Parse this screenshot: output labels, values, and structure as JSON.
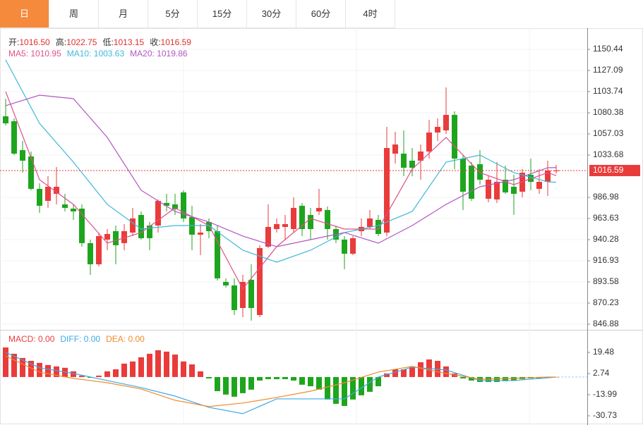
{
  "tabs": [
    "日",
    "周",
    "月",
    "5分",
    "15分",
    "30分",
    "60分",
    "4时"
  ],
  "active_tab": 0,
  "chart_data": [
    {
      "type": "candlestick",
      "ohlc_legend": [
        {
          "label": "开:",
          "value": "1016.50"
        },
        {
          "label": "高:",
          "value": "1022.75"
        },
        {
          "label": "低:",
          "value": "1013.15"
        },
        {
          "label": "收:",
          "value": "1016.59"
        }
      ],
      "open": [
        1076.5,
        1071.05,
        1039.14,
        1032.14,
        996.34,
        983.1,
        990.89,
        979.21,
        974.54,
        974.54,
        936.41,
        913.06,
        940.3,
        949.64,
        936.41,
        948.08,
        967.54,
        955.86,
        955.86,
        980.77,
        979.21,
        992.44,
        965.2,
        945.75,
        959.76,
        949.64,
        893.6,
        889.71,
        864.8,
        895.93,
        857.02,
        932.51,
        951.97,
        954.31,
        951.97,
        977.66,
        967.54,
        971.43,
        972.99,
        951.97,
        940.3,
        924.73,
        949.64,
        954.31,
        962.09,
        948.08,
        1035.25,
        1035.25,
        1027.47,
        1027.47,
        1037.59,
        1058.6,
        1060.93,
        1078.06,
        1029.8,
        1022.02,
        1023.58,
        985.44,
        984.66,
        1006.45,
        998.67,
        993.22,
        1011.9,
        996.34,
        1004.12,
        1016.5
      ],
      "high": [
        1095.96,
        1074.17,
        1049.26,
        1037.59,
        1002.56,
        1010.34,
        1020.46,
        990.89,
        979.21,
        979.21,
        940.3,
        948.08,
        951.97,
        955.86,
        957.42,
        975.32,
        971.43,
        959.76,
        984.66,
        990.89,
        990.89,
        994.78,
        977.66,
        957.42,
        963.65,
        955.86,
        897.49,
        897.49,
        901.38,
        913.06,
        934.07,
        979.21,
        963.65,
        967.54,
        986.99,
        980.77,
        975.32,
        996.34,
        976.88,
        955.86,
        944.19,
        944.19,
        963.65,
        972.99,
        967.54,
        1064.83,
        1059.38,
        1060.93,
        1041.48,
        1045.37,
        1072.61,
        1074.17,
        1108.41,
        1081.95,
        1033.69,
        1025.91,
        1039.14,
        1010.34,
        1025.91,
        1022.02,
        1011.9,
        1018.13,
        1029.8,
        1018.13,
        1027.47,
        1022.75
      ],
      "low": [
        1066.38,
        1033.69,
        1014.24,
        994.78,
        969.87,
        975.32,
        979.21,
        971.43,
        962.09,
        932.51,
        901.38,
        910.72,
        928.62,
        913.06,
        928.62,
        944.19,
        940.3,
        928.62,
        948.08,
        971.43,
        967.54,
        959.76,
        928.62,
        923.17,
        941.85,
        895.16,
        887.37,
        857.02,
        854.68,
        850.79,
        854.68,
        930.96,
        948.08,
        940.3,
        948.08,
        944.19,
        940.3,
        967.54,
        940.3,
        936.41,
        907.61,
        923.17,
        944.19,
        951.97,
        944.19,
        944.19,
        1024.35,
        1010.34,
        1010.34,
        1006.45,
        1029.8,
        1049.26,
        1057.04,
        1018.13,
        972.99,
        983.1,
        1001.0,
        981.55,
        980.77,
        990.89,
        967.54,
        986.99,
        994.78,
        990.89,
        988.55,
        1013.15
      ],
      "close": [
        1068.72,
        1035.25,
        1027.47,
        996.34,
        977.66,
        998.67,
        998.67,
        975.32,
        971.43,
        936.41,
        913.06,
        944.19,
        946.53,
        934.07,
        949.64,
        963.65,
        941.85,
        941.85,
        983.1,
        977.66,
        973.77,
        963.65,
        945.75,
        948.08,
        949.64,
        897.49,
        889.71,
        862.47,
        893.6,
        864.8,
        930.96,
        954.31,
        957.42,
        957.42,
        975.32,
        951.97,
        951.97,
        975.32,
        951.97,
        940.3,
        924.73,
        941.85,
        954.31,
        963.65,
        946.53,
        1041.48,
        1045.37,
        1019.68,
        1019.68,
        1037.59,
        1058.6,
        1064.83,
        1078.06,
        1029.8,
        993.22,
        985.44,
        1006.45,
        1006.45,
        1004.12,
        992.44,
        990.89,
        1014.24,
        1004.12,
        1004.12,
        1016.57,
        1016.59
      ],
      "up_color": "#ea3b3b",
      "down_color": "#1ea51e",
      "ma": [
        {
          "label": "MA5:",
          "value_label": "1010.95",
          "color": "#e0508c",
          "x": [
            0,
            4,
            8,
            12,
            16,
            20,
            24,
            28,
            32,
            36,
            40,
            44,
            48,
            52,
            56,
            60,
            64,
            65
          ],
          "values": [
            1103.74,
            1006.45,
            979.21,
            936.41,
            948.08,
            975.32,
            955.86,
            885.82,
            932.51,
            963.65,
            951.97,
            951.97,
            1018.13,
            1053.15,
            1014.24,
            1001.0,
            1014.24,
            1010.95
          ]
        },
        {
          "label": "MA10:",
          "value_label": "1003.63",
          "color": "#3fb8d8",
          "x": [
            0,
            4,
            8,
            12,
            16,
            20,
            24,
            28,
            32,
            36,
            40,
            44,
            48,
            52,
            56,
            60,
            64,
            65
          ],
          "values": [
            1138.76,
            1068.72,
            1025.91,
            979.21,
            951.97,
            955.86,
            955.86,
            928.62,
            915.39,
            928.62,
            948.08,
            955.86,
            971.43,
            1025.91,
            1033.69,
            1014.24,
            1004.12,
            1003.63
          ]
        },
        {
          "label": "MA20:",
          "value_label": "1019.86",
          "color": "#b455c4",
          "x": [
            0,
            4,
            8,
            12,
            16,
            20,
            24,
            28,
            32,
            36,
            40,
            44,
            48,
            52,
            56,
            60,
            64,
            65
          ],
          "values": [
            1088.18,
            1099.85,
            1095.96,
            1053.15,
            994.78,
            971.43,
            959.76,
            944.19,
            932.51,
            940.3,
            948.08,
            936.41,
            955.86,
            979.21,
            998.67,
            1006.45,
            1019.68,
            1019.86
          ]
        }
      ],
      "last_price": 1016.59,
      "ylim": [
        840.65,
        1173.79
      ],
      "yticks": [
        1150.44,
        1127.09,
        1103.74,
        1080.38,
        1057.03,
        1033.68,
        986.98,
        963.63,
        940.28,
        916.93,
        893.58,
        870.23,
        846.88
      ],
      "grid": true
    },
    {
      "type": "macd",
      "legend": [
        {
          "label": "MACD:",
          "value": "0.00",
          "color": "#ea3b3b"
        },
        {
          "label": "DIFF:",
          "value": "0.00",
          "color": "#3fa8e6"
        },
        {
          "label": "DEA:",
          "value": "0.00",
          "color": "#f08a2c"
        }
      ],
      "values": [
        23.4,
        18.4,
        15.1,
        12.8,
        11.2,
        9.5,
        8.4,
        7.3,
        4.5,
        1.1,
        -0.6,
        1.1,
        4.5,
        6.1,
        10.6,
        12.3,
        15.6,
        18.4,
        21.2,
        20.1,
        17.8,
        12.3,
        10.0,
        4.5,
        -1.1,
        -11.2,
        -13.9,
        -15.6,
        -12.8,
        -10.0,
        -2.8,
        -1.7,
        -1.7,
        -1.7,
        -2.8,
        -6.1,
        -7.3,
        -10.0,
        -17.8,
        -21.2,
        -22.9,
        -17.8,
        -14.5,
        -11.7,
        -7.3,
        2.8,
        6.1,
        6.1,
        8.4,
        11.7,
        13.9,
        12.8,
        8.4,
        2.8,
        -1.1,
        -2.8,
        -3.9,
        -3.9,
        -3.9,
        -3.3,
        -2.8,
        -1.7,
        -1.1,
        -1.1,
        -0.6,
        0
      ],
      "up_color": "#ea3b3b",
      "down_color": "#1ea51e",
      "series": [
        {
          "name": "DIFF",
          "color": "#3fa8e6",
          "x": [
            0,
            4,
            8,
            12,
            16,
            20,
            24,
            28,
            32,
            36,
            40,
            44,
            48,
            52,
            56,
            60,
            64,
            65
          ],
          "values": [
            19.5,
            7.3,
            2.8,
            -2.8,
            -8.4,
            -15.1,
            -24.0,
            -29.0,
            -17.3,
            -17.3,
            -17.3,
            0,
            7.8,
            5.6,
            -2.8,
            -2.8,
            -0.6,
            0
          ]
        },
        {
          "name": "DEA",
          "color": "#f08a2c",
          "x": [
            0,
            4,
            8,
            12,
            16,
            20,
            24,
            28,
            32,
            36,
            40,
            44,
            48,
            52,
            56,
            60,
            64,
            65
          ],
          "values": [
            16.7,
            3.9,
            -1.1,
            -4.5,
            -9.5,
            -18.4,
            -23.4,
            -20.6,
            -16.2,
            -11.2,
            -4.5,
            3.9,
            8.4,
            2.8,
            -1.7,
            -1.1,
            0,
            0
          ]
        }
      ],
      "ylim": [
        -36.31,
        36.22
      ],
      "yticks": [
        19.48,
        2.74,
        -13.99,
        -30.73
      ]
    }
  ]
}
